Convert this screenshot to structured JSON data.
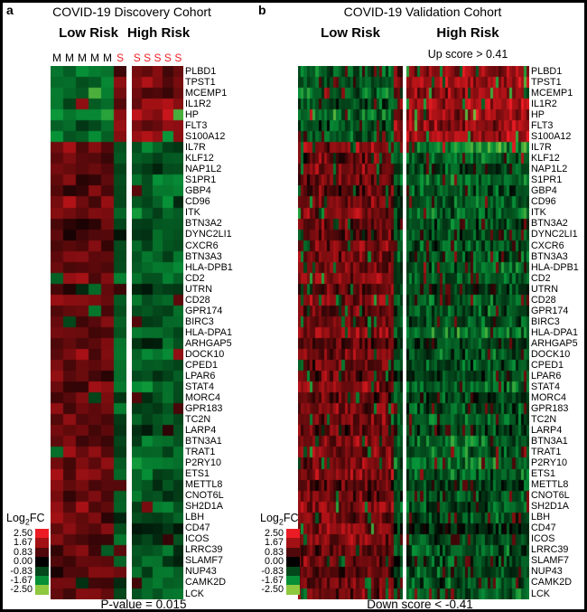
{
  "ui": {
    "panel_a": {
      "letter": "a",
      "title": "COVID-19 Discovery Cohort",
      "low_label": "Low Risk",
      "high_label": "High Risk",
      "footer": "P-value = 0.015"
    },
    "panel_b": {
      "letter": "b",
      "title": "COVID-19 Validation Cohort",
      "low_label": "Low Risk",
      "high_label": "High Risk",
      "up_annotation": "Up score > 0.41",
      "footer": "Down score < -0.41"
    },
    "legend": {
      "prefix": "Log",
      "sub": "2",
      "suffix": "FC"
    }
  },
  "colors": {
    "up_max": "#ed1c24",
    "up_mid": "#aa1216",
    "zero": "#000000",
    "down_mid": "#08963a",
    "down_max": "#8dc63f",
    "sample_s_label": "#ed1c24",
    "sample_m_label": "#000000"
  },
  "chart_data": [
    {
      "type": "heatmap",
      "panel": "a",
      "title": "COVID-19 Discovery Cohort",
      "column_groups": [
        {
          "label": "Low Risk",
          "samples": [
            "M",
            "M",
            "M",
            "M",
            "M",
            "S"
          ]
        },
        {
          "label": "High Risk",
          "samples": [
            "S",
            "S",
            "S",
            "S",
            "S"
          ]
        }
      ],
      "rows": [
        "PLBD1",
        "TPST1",
        "MCEMP1",
        "IL1R2",
        "HP",
        "FLT3",
        "S100A12",
        "IL7R",
        "KLF12",
        "NAP1L2",
        "S1PR1",
        "GBP4",
        "CD96",
        "ITK",
        "BTN3A2",
        "DYNC2LI1",
        "CXCR6",
        "BTN3A3",
        "HLA-DPB1",
        "CD2",
        "UTRN",
        "CD28",
        "GPR174",
        "BIRC3",
        "HLA-DPA1",
        "ARHGAP5",
        "DOCK10",
        "CPED1",
        "LPAR6",
        "STAT4",
        "MORC4",
        "GPR183",
        "TC2N",
        "LARP4",
        "BTN3A1",
        "TRAT1",
        "P2RY10",
        "ETS1",
        "METTL8",
        "CNOT6L",
        "SH2D1A",
        "LBH",
        "CD47",
        "ICOS",
        "LRRC39",
        "SLAMF7",
        "NUP43",
        "CAMK2D",
        "LCK"
      ],
      "row_mean_log2fc_low_risk": [
        -1.4,
        -1.1,
        -1.5,
        -1.2,
        -1.6,
        -1.0,
        -1.2,
        1.2,
        0.9,
        1.1,
        1.0,
        0.8,
        1.2,
        1.3,
        0.9,
        0.8,
        1.1,
        1.0,
        1.2,
        1.3,
        0.9,
        1.2,
        1.0,
        1.1,
        1.2,
        0.8,
        1.1,
        0.9,
        1.0,
        1.2,
        0.9,
        1.1,
        1.0,
        0.9,
        1.1,
        1.2,
        1.1,
        1.3,
        0.8,
        1.0,
        1.2,
        1.0,
        1.3,
        1.1,
        0.9,
        1.0,
        0.8,
        1.0,
        1.1
      ],
      "row_mean_log2fc_high_risk": [
        1.3,
        1.5,
        1.2,
        1.6,
        1.9,
        1.3,
        1.6,
        -1.1,
        -1.0,
        -0.9,
        -1.3,
        -1.0,
        -1.1,
        -1.2,
        -1.0,
        -0.9,
        -1.0,
        -1.1,
        -1.3,
        -1.1,
        -0.8,
        -1.2,
        -1.1,
        -1.0,
        -1.4,
        -0.9,
        -1.1,
        -1.0,
        -0.9,
        -1.2,
        -0.8,
        -1.0,
        -1.1,
        -0.9,
        -1.3,
        -1.2,
        -1.4,
        -1.2,
        -0.9,
        -1.0,
        -1.1,
        -1.0,
        -0.5,
        -1.0,
        -1.1,
        -0.9,
        -1.0,
        -1.1,
        -1.2
      ],
      "colorbar": {
        "label": "Log2FC",
        "ticks": [
          "2.50",
          "1.67",
          "0.83",
          "0.00",
          "-0.83",
          "-1.67",
          "-2.50"
        ],
        "max_color": "#ed1c24",
        "mid_color": "#000000",
        "min_color": "#8dc63f"
      },
      "footnote": "P-value = 0.015"
    },
    {
      "type": "heatmap",
      "panel": "b",
      "title": "COVID-19 Validation Cohort",
      "column_groups": [
        {
          "label": "Low Risk",
          "n_samples": 36
        },
        {
          "label": "High Risk",
          "n_samples": 44,
          "annotation": "Up score > 0.41"
        }
      ],
      "rows": [
        "PLBD1",
        "TPST1",
        "MCEMP1",
        "IL1R2",
        "HP",
        "FLT3",
        "S100A12",
        "IL7R",
        "KLF12",
        "NAP1L2",
        "S1PR1",
        "GBP4",
        "CD96",
        "ITK",
        "BTN3A2",
        "DYNC2LI1",
        "CXCR6",
        "BTN3A3",
        "HLA-DPB1",
        "CD2",
        "UTRN",
        "CD28",
        "GPR174",
        "BIRC3",
        "HLA-DPA1",
        "ARHGAP5",
        "DOCK10",
        "CPED1",
        "LPAR6",
        "STAT4",
        "MORC4",
        "GPR183",
        "TC2N",
        "LARP4",
        "BTN3A1",
        "TRAT1",
        "P2RY10",
        "ETS1",
        "METTL8",
        "CNOT6L",
        "SH2D1A",
        "LBH",
        "CD47",
        "ICOS",
        "LRRC39",
        "SLAMF7",
        "NUP43",
        "CAMK2D",
        "LCK"
      ],
      "row_mean_log2fc_low_risk": [
        -1.2,
        -0.9,
        -1.3,
        -1.0,
        -1.4,
        -0.9,
        -1.1,
        1.4,
        1.0,
        1.2,
        1.1,
        0.9,
        1.3,
        1.4,
        1.0,
        0.9,
        1.2,
        1.1,
        1.3,
        1.4,
        1.0,
        1.3,
        1.1,
        1.2,
        1.3,
        0.9,
        1.2,
        1.0,
        1.1,
        1.3,
        1.0,
        1.2,
        1.1,
        1.0,
        1.2,
        1.3,
        1.2,
        1.4,
        0.9,
        1.1,
        1.3,
        1.1,
        1.4,
        1.2,
        1.0,
        1.1,
        0.9,
        1.1,
        1.2
      ],
      "row_mean_log2fc_high_risk": [
        1.5,
        1.7,
        1.4,
        1.8,
        1.6,
        1.5,
        1.7,
        -1.6,
        -1.2,
        -0.8,
        -1.2,
        -0.9,
        -1.0,
        -1.1,
        -0.9,
        -0.8,
        -0.9,
        -1.0,
        -1.2,
        -1.0,
        -0.7,
        -1.1,
        -1.0,
        -0.9,
        -1.3,
        -0.8,
        -1.0,
        -0.9,
        -0.8,
        -1.1,
        -0.7,
        -0.9,
        -1.0,
        -0.8,
        -1.2,
        -1.1,
        -1.3,
        -1.1,
        -0.8,
        -0.9,
        -1.0,
        -0.9,
        -0.4,
        -0.9,
        -1.0,
        -0.8,
        -0.9,
        -1.0,
        -1.1
      ],
      "colorbar": {
        "label": "Log2FC",
        "ticks": [
          "2.50",
          "1.67",
          "0.83",
          "0.00",
          "-0.83",
          "-1.67",
          "-2.50"
        ],
        "max_color": "#ed1c24",
        "mid_color": "#000000",
        "min_color": "#8dc63f"
      },
      "footnote": "Down score < -0.41"
    }
  ]
}
